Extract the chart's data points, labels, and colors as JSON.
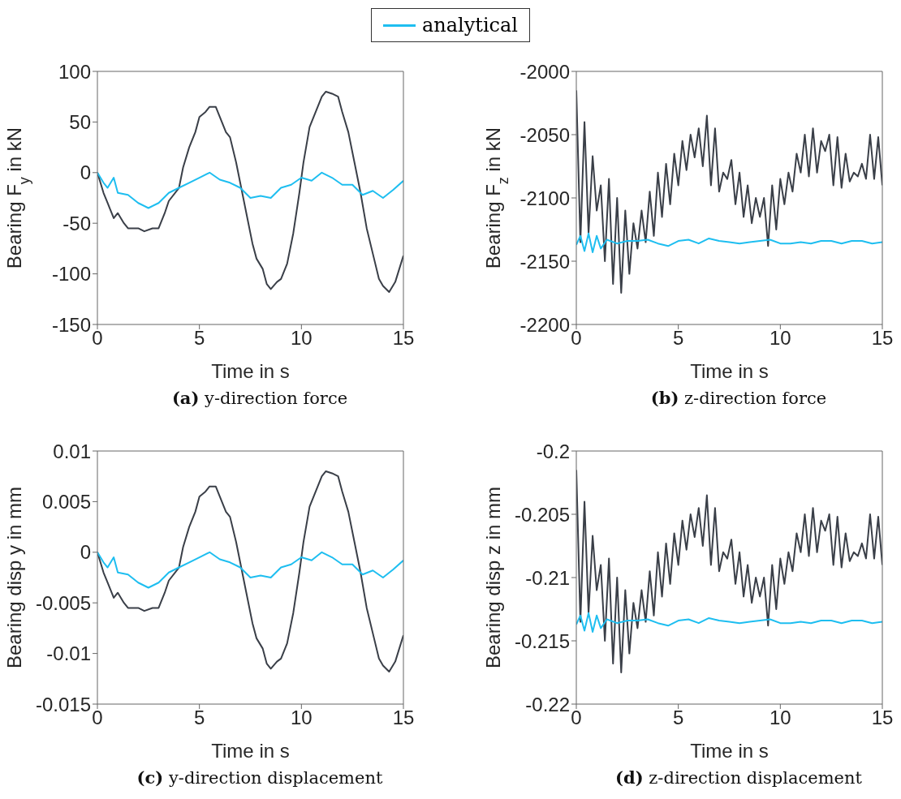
{
  "chart_data": [
    {
      "type": "line",
      "legend": "top",
      "xlabel": "Time in s",
      "ylabel": "Bearing F$_{y}$ in kN",
      "annotations": [
        "(a) y-direction force"
      ],
      "xlim": [
        0,
        15
      ],
      "xticks": [
        0,
        5,
        10,
        15
      ],
      "ylim": [
        -150,
        100
      ],
      "yticks": [
        -150,
        -100,
        -50,
        0,
        50,
        100
      ],
      "grid": false,
      "series": [
        {
          "color": "#3a3f48",
          "x": [
            0,
            0.3,
            0.5,
            0.8,
            1,
            1.3,
            1.5,
            2,
            2.3,
            2.7,
            3,
            3.3,
            3.5,
            4,
            4.2,
            4.5,
            4.8,
            5,
            5.3,
            5.5,
            5.8,
            6,
            6.3,
            6.5,
            6.8,
            7,
            7.3,
            7.6,
            7.8,
            8.1,
            8.3,
            8.5,
            8.8,
            9,
            9.3,
            9.6,
            9.9,
            10.1,
            10.4,
            10.7,
            11,
            11.2,
            11.5,
            11.8,
            12,
            12.3,
            12.6,
            12.9,
            13.2,
            13.5,
            13.8,
            14,
            14.3,
            14.6,
            15
          ],
          "values": [
            0,
            -20,
            -30,
            -45,
            -40,
            -50,
            -55,
            -55,
            -58,
            -55,
            -55,
            -40,
            -28,
            -15,
            5,
            25,
            40,
            55,
            60,
            65,
            65,
            55,
            40,
            35,
            10,
            -10,
            -40,
            -70,
            -85,
            -95,
            -110,
            -115,
            -108,
            -105,
            -90,
            -60,
            -20,
            10,
            45,
            60,
            75,
            80,
            78,
            75,
            60,
            40,
            10,
            -20,
            -55,
            -80,
            -105,
            -112,
            -118,
            -108,
            -82
          ]
        },
        {
          "name": "analytical",
          "color": "#1ebef0",
          "x": [
            0,
            0.3,
            0.5,
            0.8,
            1,
            1.5,
            2,
            2.5,
            3,
            3.5,
            4,
            4.5,
            5,
            5.5,
            6,
            6.5,
            7,
            7.5,
            8,
            8.5,
            9,
            9.5,
            10,
            10.5,
            11,
            11.5,
            12,
            12.5,
            13,
            13.5,
            14,
            14.5,
            15
          ],
          "values": [
            0,
            -10,
            -15,
            -5,
            -20,
            -22,
            -30,
            -35,
            -30,
            -20,
            -15,
            -10,
            -5,
            0,
            -7,
            -10,
            -15,
            -25,
            -23,
            -25,
            -15,
            -12,
            -5,
            -8,
            0,
            -5,
            -12,
            -12,
            -22,
            -18,
            -25,
            -17,
            -8
          ]
        }
      ]
    },
    {
      "type": "line",
      "xlabel": "Time in s",
      "ylabel": "Bearing F$_{z}$ in kN",
      "annotations": [
        "(b) z-direction force"
      ],
      "xlim": [
        0,
        15
      ],
      "xticks": [
        0,
        5,
        10,
        15
      ],
      "ylim": [
        -2200,
        -2000
      ],
      "yticks": [
        -2200,
        -2150,
        -2100,
        -2050,
        -2000
      ],
      "grid": false,
      "series": [
        {
          "color": "#3a3f48",
          "x": [
            0,
            0.2,
            0.4,
            0.6,
            0.8,
            1,
            1.2,
            1.4,
            1.6,
            1.8,
            2,
            2.2,
            2.4,
            2.6,
            2.8,
            3,
            3.2,
            3.4,
            3.6,
            3.8,
            4,
            4.2,
            4.4,
            4.6,
            4.8,
            5,
            5.2,
            5.4,
            5.6,
            5.8,
            6,
            6.2,
            6.4,
            6.6,
            6.8,
            7,
            7.2,
            7.4,
            7.6,
            7.8,
            8,
            8.2,
            8.4,
            8.6,
            8.8,
            9,
            9.2,
            9.4,
            9.6,
            9.8,
            10,
            10.2,
            10.4,
            10.6,
            10.8,
            11,
            11.2,
            11.4,
            11.6,
            11.8,
            12,
            12.2,
            12.4,
            12.6,
            12.8,
            13,
            13.2,
            13.4,
            13.6,
            13.8,
            14,
            14.2,
            14.4,
            14.6,
            14.8,
            15
          ],
          "values": [
            -2015,
            -2135,
            -2040,
            -2128,
            -2067,
            -2110,
            -2090,
            -2150,
            -2085,
            -2168,
            -2100,
            -2175,
            -2110,
            -2160,
            -2120,
            -2140,
            -2110,
            -2135,
            -2095,
            -2130,
            -2080,
            -2115,
            -2073,
            -2105,
            -2065,
            -2090,
            -2055,
            -2078,
            -2050,
            -2068,
            -2045,
            -2075,
            -2035,
            -2090,
            -2045,
            -2095,
            -2080,
            -2085,
            -2070,
            -2105,
            -2080,
            -2115,
            -2090,
            -2120,
            -2100,
            -2115,
            -2100,
            -2138,
            -2090,
            -2125,
            -2085,
            -2105,
            -2080,
            -2095,
            -2065,
            -2080,
            -2050,
            -2083,
            -2045,
            -2080,
            -2055,
            -2063,
            -2050,
            -2090,
            -2052,
            -2092,
            -2065,
            -2087,
            -2080,
            -2083,
            -2073,
            -2085,
            -2050,
            -2085,
            -2052,
            -2090
          ]
        },
        {
          "color": "#1ebef0",
          "x": [
            0,
            0.2,
            0.4,
            0.6,
            0.8,
            1,
            1.2,
            1.5,
            2,
            2.5,
            3,
            3.5,
            4,
            4.5,
            5,
            5.5,
            6,
            6.5,
            7,
            7.5,
            8,
            8.5,
            9,
            9.5,
            10,
            10.5,
            11,
            11.5,
            12,
            12.5,
            13,
            13.5,
            14,
            14.5,
            15
          ],
          "values": [
            -2137,
            -2130,
            -2142,
            -2128,
            -2143,
            -2130,
            -2140,
            -2133,
            -2136,
            -2134,
            -2134,
            -2133,
            -2136,
            -2138,
            -2134,
            -2133,
            -2136,
            -2132,
            -2134,
            -2135,
            -2136,
            -2135,
            -2134,
            -2133,
            -2136,
            -2136,
            -2135,
            -2136,
            -2134,
            -2134,
            -2136,
            -2134,
            -2134,
            -2136,
            -2135
          ]
        }
      ]
    },
    {
      "type": "line",
      "xlabel": "Time in s",
      "ylabel": "Bearing disp y in mm",
      "annotations": [
        "(c) y-direction displacement"
      ],
      "xlim": [
        0,
        15
      ],
      "xticks": [
        0,
        5,
        10,
        15
      ],
      "ylim": [
        -0.015,
        0.01
      ],
      "yticks": [
        -0.015,
        -0.01,
        -0.005,
        0,
        0.005,
        0.01
      ],
      "grid": false,
      "series": [
        {
          "color": "#3a3f48",
          "x": [
            0,
            0.3,
            0.5,
            0.8,
            1,
            1.3,
            1.5,
            2,
            2.3,
            2.7,
            3,
            3.3,
            3.5,
            4,
            4.2,
            4.5,
            4.8,
            5,
            5.3,
            5.5,
            5.8,
            6,
            6.3,
            6.5,
            6.8,
            7,
            7.3,
            7.6,
            7.8,
            8.1,
            8.3,
            8.5,
            8.8,
            9,
            9.3,
            9.6,
            9.9,
            10.1,
            10.4,
            10.7,
            11,
            11.2,
            11.5,
            11.8,
            12,
            12.3,
            12.6,
            12.9,
            13.2,
            13.5,
            13.8,
            14,
            14.3,
            14.6,
            15
          ],
          "values": [
            0,
            -0.002,
            -0.003,
            -0.0045,
            -0.004,
            -0.005,
            -0.0055,
            -0.0055,
            -0.0058,
            -0.0055,
            -0.0055,
            -0.004,
            -0.0028,
            -0.0015,
            0.0005,
            0.0025,
            0.004,
            0.0055,
            0.006,
            0.0065,
            0.0065,
            0.0055,
            0.004,
            0.0035,
            0.001,
            -0.001,
            -0.004,
            -0.007,
            -0.0085,
            -0.0095,
            -0.011,
            -0.0115,
            -0.0108,
            -0.0105,
            -0.009,
            -0.006,
            -0.002,
            0.001,
            0.0045,
            0.006,
            0.0075,
            0.008,
            0.0078,
            0.0075,
            0.006,
            0.004,
            0.001,
            -0.002,
            -0.0055,
            -0.008,
            -0.0105,
            -0.0112,
            -0.0118,
            -0.0108,
            -0.0082
          ]
        },
        {
          "color": "#1ebef0",
          "x": [
            0,
            0.3,
            0.5,
            0.8,
            1,
            1.5,
            2,
            2.5,
            3,
            3.5,
            4,
            4.5,
            5,
            5.5,
            6,
            6.5,
            7,
            7.5,
            8,
            8.5,
            9,
            9.5,
            10,
            10.5,
            11,
            11.5,
            12,
            12.5,
            13,
            13.5,
            14,
            14.5,
            15
          ],
          "values": [
            0,
            -0.001,
            -0.0015,
            -0.0005,
            -0.002,
            -0.0022,
            -0.003,
            -0.0035,
            -0.003,
            -0.002,
            -0.0015,
            -0.001,
            -0.0005,
            0,
            -0.0007,
            -0.001,
            -0.0015,
            -0.0025,
            -0.0023,
            -0.0025,
            -0.0015,
            -0.0012,
            -0.0005,
            -0.0008,
            0,
            -0.0005,
            -0.0012,
            -0.0012,
            -0.0022,
            -0.0018,
            -0.0025,
            -0.0017,
            -0.0008
          ]
        }
      ]
    },
    {
      "type": "line",
      "xlabel": "Time in s",
      "ylabel": "Bearing disp z in mm",
      "annotations": [
        "(d) z-direction displacement"
      ],
      "xlim": [
        0,
        15
      ],
      "xticks": [
        0,
        5,
        10,
        15
      ],
      "ylim": [
        -0.22,
        -0.2
      ],
      "yticks": [
        -0.22,
        -0.215,
        -0.21,
        -0.205,
        -0.2
      ],
      "grid": false,
      "series": [
        {
          "color": "#3a3f48",
          "x": [
            0,
            0.2,
            0.4,
            0.6,
            0.8,
            1,
            1.2,
            1.4,
            1.6,
            1.8,
            2,
            2.2,
            2.4,
            2.6,
            2.8,
            3,
            3.2,
            3.4,
            3.6,
            3.8,
            4,
            4.2,
            4.4,
            4.6,
            4.8,
            5,
            5.2,
            5.4,
            5.6,
            5.8,
            6,
            6.2,
            6.4,
            6.6,
            6.8,
            7,
            7.2,
            7.4,
            7.6,
            7.8,
            8,
            8.2,
            8.4,
            8.6,
            8.8,
            9,
            9.2,
            9.4,
            9.6,
            9.8,
            10,
            10.2,
            10.4,
            10.6,
            10.8,
            11,
            11.2,
            11.4,
            11.6,
            11.8,
            12,
            12.2,
            12.4,
            12.6,
            12.8,
            13,
            13.2,
            13.4,
            13.6,
            13.8,
            14,
            14.2,
            14.4,
            14.6,
            14.8,
            15
          ],
          "values": [
            -0.2015,
            -0.2135,
            -0.204,
            -0.2128,
            -0.2067,
            -0.211,
            -0.209,
            -0.215,
            -0.2085,
            -0.2168,
            -0.21,
            -0.2175,
            -0.211,
            -0.216,
            -0.212,
            -0.214,
            -0.211,
            -0.2135,
            -0.2095,
            -0.213,
            -0.208,
            -0.2115,
            -0.2073,
            -0.2105,
            -0.2065,
            -0.209,
            -0.2055,
            -0.2078,
            -0.205,
            -0.2068,
            -0.2045,
            -0.2075,
            -0.2035,
            -0.209,
            -0.2045,
            -0.2095,
            -0.208,
            -0.2085,
            -0.207,
            -0.2105,
            -0.208,
            -0.2115,
            -0.209,
            -0.212,
            -0.21,
            -0.2115,
            -0.21,
            -0.2138,
            -0.209,
            -0.2125,
            -0.2085,
            -0.2105,
            -0.208,
            -0.2095,
            -0.2065,
            -0.208,
            -0.205,
            -0.2083,
            -0.2045,
            -0.208,
            -0.2055,
            -0.2063,
            -0.205,
            -0.209,
            -0.2052,
            -0.2092,
            -0.2065,
            -0.2087,
            -0.208,
            -0.2083,
            -0.2073,
            -0.2085,
            -0.205,
            -0.2085,
            -0.2052,
            -0.209
          ]
        },
        {
          "color": "#1ebef0",
          "x": [
            0,
            0.2,
            0.4,
            0.6,
            0.8,
            1,
            1.2,
            1.5,
            2,
            2.5,
            3,
            3.5,
            4,
            4.5,
            5,
            5.5,
            6,
            6.5,
            7,
            7.5,
            8,
            8.5,
            9,
            9.5,
            10,
            10.5,
            11,
            11.5,
            12,
            12.5,
            13,
            13.5,
            14,
            14.5,
            15
          ],
          "values": [
            -0.2137,
            -0.213,
            -0.2142,
            -0.2128,
            -0.2143,
            -0.213,
            -0.214,
            -0.2133,
            -0.2136,
            -0.2134,
            -0.2134,
            -0.2133,
            -0.2136,
            -0.2138,
            -0.2134,
            -0.2133,
            -0.2136,
            -0.2132,
            -0.2134,
            -0.2135,
            -0.2136,
            -0.2135,
            -0.2134,
            -0.2133,
            -0.2136,
            -0.2136,
            -0.2135,
            -0.2136,
            -0.2134,
            -0.2134,
            -0.2136,
            -0.2134,
            -0.2134,
            -0.2136,
            -0.2135
          ]
        }
      ]
    }
  ]
}
